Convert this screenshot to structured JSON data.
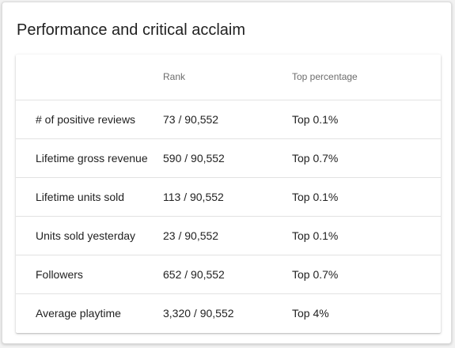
{
  "card": {
    "title": "Performance and critical acclaim"
  },
  "table": {
    "headers": [
      "",
      "Rank",
      "Top percentage"
    ],
    "rows": [
      {
        "metric": "# of positive reviews",
        "rank": "73 / 90,552",
        "top": "Top 0.1%"
      },
      {
        "metric": "Lifetime gross revenue",
        "rank": "590 / 90,552",
        "top": "Top 0.7%"
      },
      {
        "metric": "Lifetime units sold",
        "rank": "113 / 90,552",
        "top": "Top 0.1%"
      },
      {
        "metric": "Units sold yesterday",
        "rank": "23 / 90,552",
        "top": "Top 0.1%"
      },
      {
        "metric": "Followers",
        "rank": "652 / 90,552",
        "top": "Top 0.7%"
      },
      {
        "metric": "Average playtime",
        "rank": "3,320 / 90,552",
        "top": "Top 4%"
      }
    ]
  }
}
